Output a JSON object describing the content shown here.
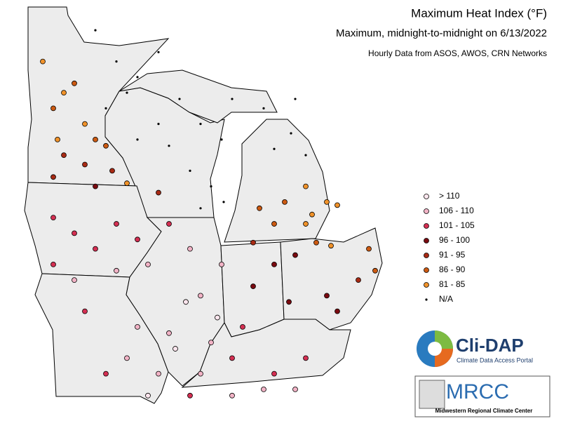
{
  "title": "Maximum Heat Index (°F)",
  "subtitle": "Maximum, midnight-to-midnight on 6/13/2022",
  "source": "Hourly Data from ASOS, AWOS, CRN Networks",
  "legend": [
    {
      "label": "> 110",
      "color": "#ffe6ee",
      "stations": [
        [
          -90.2,
          38.3
        ],
        [
          -91.5,
          36.8
        ],
        [
          -88.2,
          39.3
        ],
        [
          -89.7,
          39.8
        ]
      ]
    },
    {
      "label": "106 - 110",
      "color": "#f2b3c6",
      "stations": [
        [
          -95,
          40.5
        ],
        [
          -93,
          40.8
        ],
        [
          -91.5,
          41
        ],
        [
          -92,
          39
        ],
        [
          -92.5,
          38
        ],
        [
          -91,
          37.5
        ],
        [
          -90.5,
          38.8
        ],
        [
          -89,
          40
        ],
        [
          -88,
          41
        ],
        [
          -89.5,
          41.5
        ],
        [
          -88.5,
          38.5
        ],
        [
          -89,
          37.5
        ],
        [
          -87.5,
          36.8
        ],
        [
          -86,
          37
        ],
        [
          -84.5,
          37
        ]
      ]
    },
    {
      "label": "101 - 105",
      "color": "#d42f52",
      "stations": [
        [
          -96,
          42.5
        ],
        [
          -95,
          42
        ],
        [
          -94,
          41.5
        ],
        [
          -93,
          42.3
        ],
        [
          -92,
          41.8
        ],
        [
          -96,
          41
        ],
        [
          -94.5,
          39.5
        ],
        [
          -93.5,
          37.5
        ],
        [
          -87,
          39
        ],
        [
          -87.5,
          38
        ],
        [
          -85.5,
          37.5
        ],
        [
          -84,
          38
        ],
        [
          -89.5,
          36.8
        ],
        [
          -90.5,
          42.3
        ]
      ]
    },
    {
      "label": "96 - 100",
      "color": "#7a0a10",
      "stations": [
        [
          -85.5,
          41
        ],
        [
          -86.5,
          40.3
        ],
        [
          -84.8,
          39.8
        ],
        [
          -83,
          40
        ],
        [
          -82.5,
          39.5
        ],
        [
          -84.5,
          41.3
        ],
        [
          -94,
          43.5
        ]
      ]
    },
    {
      "label": "91 - 95",
      "color": "#a82a14",
      "stations": [
        [
          -95.5,
          44.5
        ],
        [
          -94.5,
          44.2
        ],
        [
          -96,
          43.8
        ],
        [
          -93.2,
          44
        ],
        [
          -91,
          43.3
        ],
        [
          -86.5,
          41.7
        ],
        [
          -81.5,
          40.5
        ]
      ]
    },
    {
      "label": "86 - 90",
      "color": "#cc5a12",
      "stations": [
        [
          -96,
          46
        ],
        [
          -95,
          46.8
        ],
        [
          -94,
          45
        ],
        [
          -93.5,
          44.8
        ],
        [
          -85.5,
          42.3
        ],
        [
          -85,
          43
        ],
        [
          -86.2,
          42.8
        ],
        [
          -83.5,
          41.7
        ],
        [
          -81,
          41.5
        ],
        [
          -80.7,
          40.8
        ]
      ]
    },
    {
      "label": "81 - 85",
      "color": "#f0922a",
      "stations": [
        [
          -96.5,
          47.5
        ],
        [
          -95.5,
          46.5
        ],
        [
          -94.5,
          45.5
        ],
        [
          -95.8,
          45
        ],
        [
          -83,
          43
        ],
        [
          -83.7,
          42.6
        ],
        [
          -82.5,
          42.9
        ],
        [
          -84,
          43.5
        ],
        [
          -82.8,
          41.6
        ],
        [
          -84,
          42.3
        ],
        [
          -92.5,
          43.6
        ]
      ]
    },
    {
      "label": "N/A",
      "color": "#000000",
      "stations": [
        [
          -94,
          48.5
        ],
        [
          -93,
          47.5
        ],
        [
          -92,
          47
        ],
        [
          -91,
          47.8
        ],
        [
          -92.5,
          46.5
        ],
        [
          -90,
          46.3
        ],
        [
          -89,
          45.5
        ],
        [
          -90.5,
          44.8
        ],
        [
          -88,
          45
        ],
        [
          -89.5,
          44
        ],
        [
          -88.5,
          43.5
        ],
        [
          -91,
          45.5
        ],
        [
          -87.5,
          46.3
        ],
        [
          -86,
          46
        ],
        [
          -84.5,
          46.3
        ],
        [
          -84.7,
          45.2
        ],
        [
          -84,
          44.5
        ],
        [
          -85.5,
          44.7
        ],
        [
          -89,
          42.8
        ],
        [
          -87.9,
          43.0
        ],
        [
          -92,
          45
        ],
        [
          -93.5,
          46
        ]
      ]
    }
  ],
  "logos": {
    "clidap": "Cli-DAP",
    "clidap_sub": "Climate Data Access Portal",
    "mrcc": "MRCC",
    "mrcc_sub": "Midwestern Regional Climate Center"
  }
}
